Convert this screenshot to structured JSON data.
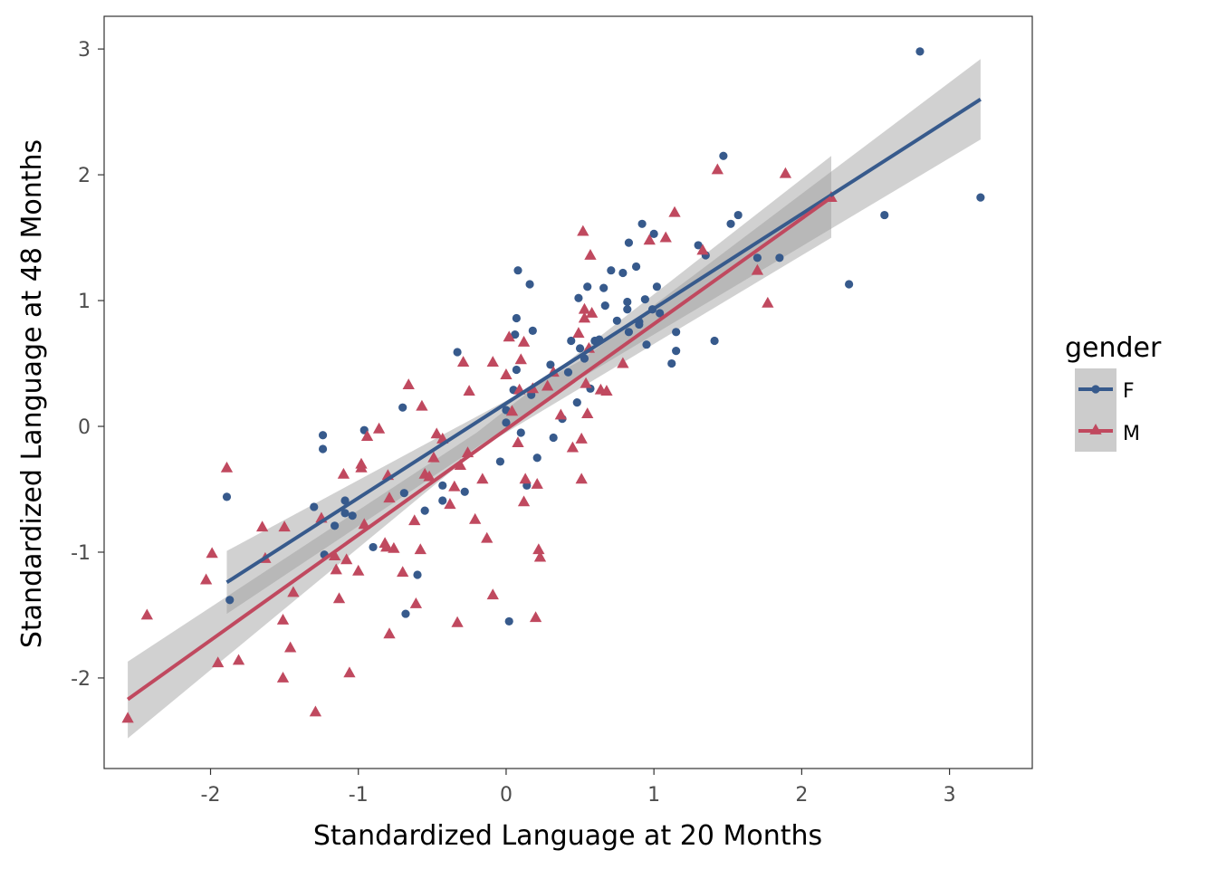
{
  "chart_data": {
    "type": "scatter",
    "title": "",
    "xlabel": "Standardized Language at 20 Months",
    "ylabel": "Standardized Language at 48 Months",
    "xlim": [
      -2.72,
      3.56
    ],
    "ylim": [
      -2.72,
      3.26
    ],
    "x_ticks": [
      -2,
      -1,
      0,
      1,
      2,
      3
    ],
    "x_tick_labels": [
      "-2",
      "-1",
      "0",
      "1",
      "2",
      "3"
    ],
    "y_ticks": [
      -2,
      -1,
      0,
      1,
      2,
      3
    ],
    "y_tick_labels": [
      "-2",
      "-1",
      "0",
      "1",
      "2",
      "3"
    ],
    "grid": false,
    "legend": {
      "title": "gender",
      "placement": "right",
      "entries": [
        "F",
        "M"
      ]
    },
    "series": [
      {
        "name": "F",
        "color": "#375a8c",
        "marker": "circle",
        "points": [
          [
            -1.89,
            -0.56
          ],
          [
            -1.87,
            -1.38
          ],
          [
            -1.24,
            -0.07
          ],
          [
            -1.24,
            -0.18
          ],
          [
            -1.3,
            -0.64
          ],
          [
            -1.23,
            -1.02
          ],
          [
            -1.16,
            -0.79
          ],
          [
            -1.09,
            -0.59
          ],
          [
            -1.09,
            -0.69
          ],
          [
            -1.04,
            -0.71
          ],
          [
            -0.96,
            -0.03
          ],
          [
            -0.9,
            -0.96
          ],
          [
            -0.7,
            0.15
          ],
          [
            -0.69,
            -0.53
          ],
          [
            -0.68,
            -1.49
          ],
          [
            -0.6,
            -1.18
          ],
          [
            -0.55,
            -0.67
          ],
          [
            -0.43,
            -0.47
          ],
          [
            -0.43,
            -0.59
          ],
          [
            -0.33,
            0.59
          ],
          [
            -0.28,
            -0.52
          ],
          [
            -0.04,
            -0.28
          ],
          [
            0.0,
            0.13
          ],
          [
            0.0,
            0.03
          ],
          [
            0.02,
            -1.55
          ],
          [
            0.05,
            0.29
          ],
          [
            0.06,
            0.73
          ],
          [
            0.07,
            0.45
          ],
          [
            0.07,
            0.86
          ],
          [
            0.08,
            1.24
          ],
          [
            0.1,
            -0.05
          ],
          [
            0.14,
            -0.47
          ],
          [
            0.16,
            1.13
          ],
          [
            0.17,
            0.25
          ],
          [
            0.18,
            0.76
          ],
          [
            0.21,
            -0.25
          ],
          [
            0.3,
            0.49
          ],
          [
            0.32,
            -0.09
          ],
          [
            0.38,
            0.06
          ],
          [
            0.42,
            0.43
          ],
          [
            0.44,
            0.68
          ],
          [
            0.48,
            0.19
          ],
          [
            0.49,
            1.02
          ],
          [
            0.5,
            0.62
          ],
          [
            0.53,
            0.54
          ],
          [
            0.55,
            1.11
          ],
          [
            0.57,
            0.3
          ],
          [
            0.6,
            0.68
          ],
          [
            0.63,
            0.69
          ],
          [
            0.66,
            1.1
          ],
          [
            0.67,
            0.96
          ],
          [
            0.71,
            1.24
          ],
          [
            0.75,
            0.84
          ],
          [
            0.79,
            1.22
          ],
          [
            0.82,
            0.93
          ],
          [
            0.82,
            0.99
          ],
          [
            0.83,
            1.46
          ],
          [
            0.83,
            0.75
          ],
          [
            0.88,
            1.27
          ],
          [
            0.9,
            0.83
          ],
          [
            0.9,
            0.81
          ],
          [
            0.92,
            1.61
          ],
          [
            0.94,
            1.01
          ],
          [
            0.95,
            0.65
          ],
          [
            0.99,
            0.93
          ],
          [
            1.0,
            1.53
          ],
          [
            1.02,
            1.11
          ],
          [
            1.04,
            0.9
          ],
          [
            1.12,
            0.5
          ],
          [
            1.15,
            0.6
          ],
          [
            1.15,
            0.75
          ],
          [
            1.3,
            1.44
          ],
          [
            1.35,
            1.36
          ],
          [
            1.41,
            0.68
          ],
          [
            1.47,
            2.15
          ],
          [
            1.52,
            1.61
          ],
          [
            1.57,
            1.68
          ],
          [
            1.7,
            1.34
          ],
          [
            1.85,
            1.34
          ],
          [
            2.32,
            1.13
          ],
          [
            2.56,
            1.68
          ],
          [
            2.8,
            2.98
          ],
          [
            3.21,
            1.82
          ]
        ]
      },
      {
        "name": "M",
        "color": "#c0495f",
        "marker": "triangle",
        "points": [
          [
            -2.56,
            -2.32
          ],
          [
            -2.43,
            -1.5
          ],
          [
            -2.03,
            -1.22
          ],
          [
            -1.99,
            -1.01
          ],
          [
            -1.95,
            -1.88
          ],
          [
            -1.89,
            -0.33
          ],
          [
            -1.81,
            -1.86
          ],
          [
            -1.65,
            -0.8
          ],
          [
            -1.63,
            -1.05
          ],
          [
            -1.51,
            -1.54
          ],
          [
            -1.51,
            -2.0
          ],
          [
            -1.5,
            -0.8
          ],
          [
            -1.46,
            -1.76
          ],
          [
            -1.44,
            -1.32
          ],
          [
            -1.29,
            -2.27
          ],
          [
            -1.25,
            -0.73
          ],
          [
            -1.16,
            -1.03
          ],
          [
            -1.15,
            -1.14
          ],
          [
            -1.13,
            -1.37
          ],
          [
            -1.1,
            -0.38
          ],
          [
            -1.08,
            -1.06
          ],
          [
            -1.06,
            -1.96
          ],
          [
            -1.0,
            -1.15
          ],
          [
            -0.98,
            -0.3
          ],
          [
            -0.98,
            -0.33
          ],
          [
            -0.96,
            -0.78
          ],
          [
            -0.94,
            -0.08
          ],
          [
            -0.86,
            -0.02
          ],
          [
            -0.82,
            -0.93
          ],
          [
            -0.81,
            -0.96
          ],
          [
            -0.8,
            -0.39
          ],
          [
            -0.79,
            -0.57
          ],
          [
            -0.79,
            -1.65
          ],
          [
            -0.76,
            -0.97
          ],
          [
            -0.7,
            -1.16
          ],
          [
            -0.66,
            0.33
          ],
          [
            -0.62,
            -0.75
          ],
          [
            -0.61,
            -1.41
          ],
          [
            -0.58,
            -0.98
          ],
          [
            -0.57,
            0.16
          ],
          [
            -0.55,
            -0.38
          ],
          [
            -0.52,
            -0.4
          ],
          [
            -0.49,
            -0.25
          ],
          [
            -0.47,
            -0.06
          ],
          [
            -0.43,
            -0.1
          ],
          [
            -0.38,
            -0.62
          ],
          [
            -0.35,
            -0.48
          ],
          [
            -0.33,
            -1.56
          ],
          [
            -0.31,
            -0.31
          ],
          [
            -0.29,
            0.51
          ],
          [
            -0.26,
            -0.21
          ],
          [
            -0.25,
            0.28
          ],
          [
            -0.21,
            -0.74
          ],
          [
            -0.16,
            -0.42
          ],
          [
            -0.13,
            -0.89
          ],
          [
            -0.09,
            0.51
          ],
          [
            -0.09,
            -1.34
          ],
          [
            0.0,
            0.41
          ],
          [
            0.02,
            0.71
          ],
          [
            0.04,
            0.12
          ],
          [
            0.08,
            -0.13
          ],
          [
            0.09,
            0.29
          ],
          [
            0.1,
            0.53
          ],
          [
            0.12,
            -0.6
          ],
          [
            0.12,
            0.67
          ],
          [
            0.13,
            -0.42
          ],
          [
            0.18,
            0.3
          ],
          [
            0.2,
            -1.52
          ],
          [
            0.21,
            -0.46
          ],
          [
            0.22,
            -0.98
          ],
          [
            0.23,
            -1.04
          ],
          [
            0.28,
            0.32
          ],
          [
            0.32,
            0.43
          ],
          [
            0.37,
            0.09
          ],
          [
            0.45,
            -0.17
          ],
          [
            0.49,
            0.74
          ],
          [
            0.51,
            -0.1
          ],
          [
            0.51,
            -0.42
          ],
          [
            0.52,
            1.55
          ],
          [
            0.53,
            0.86
          ],
          [
            0.53,
            0.93
          ],
          [
            0.54,
            0.34
          ],
          [
            0.55,
            0.1
          ],
          [
            0.56,
            0.62
          ],
          [
            0.57,
            1.36
          ],
          [
            0.58,
            0.9
          ],
          [
            0.64,
            0.29
          ],
          [
            0.68,
            0.28
          ],
          [
            0.79,
            0.5
          ],
          [
            0.97,
            1.48
          ],
          [
            1.08,
            1.5
          ],
          [
            1.14,
            1.7
          ],
          [
            1.33,
            1.4
          ],
          [
            1.43,
            2.04
          ],
          [
            1.7,
            1.24
          ],
          [
            1.77,
            0.98
          ],
          [
            1.89,
            2.01
          ],
          [
            2.2,
            1.82
          ]
        ]
      }
    ],
    "fits": [
      {
        "series": "F",
        "method": "linear",
        "x_range": [
          -1.89,
          3.21
        ],
        "line": [
          [
            -1.89,
            -1.24
          ],
          [
            3.21,
            2.6
          ]
        ],
        "ci_lower": [
          [
            -1.89,
            -1.49
          ],
          [
            0.5,
            0.38
          ],
          [
            3.21,
            2.28
          ]
        ],
        "ci_upper": [
          [
            -1.89,
            -0.99
          ],
          [
            0.5,
            0.52
          ],
          [
            3.21,
            2.92
          ]
        ]
      },
      {
        "series": "M",
        "method": "linear",
        "x_range": [
          -2.56,
          2.2
        ],
        "line": [
          [
            -2.56,
            -2.17
          ],
          [
            2.2,
            1.82
          ]
        ],
        "ci_lower": [
          [
            -2.56,
            -2.48
          ],
          [
            -0.2,
            -0.19
          ],
          [
            2.2,
            1.5
          ]
        ],
        "ci_upper": [
          [
            -2.56,
            -1.87
          ],
          [
            -0.2,
            -0.05
          ],
          [
            2.2,
            2.15
          ]
        ]
      }
    ]
  }
}
